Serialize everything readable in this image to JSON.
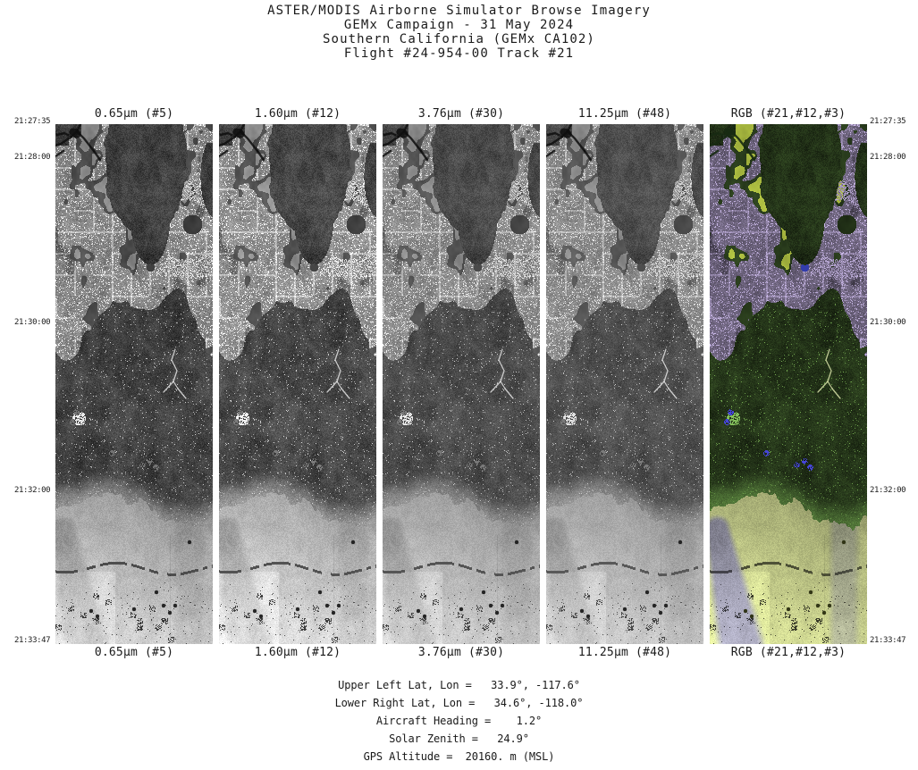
{
  "page": {
    "background": "#ffffff",
    "text_color": "#1a1a1a"
  },
  "title": {
    "line1": "ASTER/MODIS Airborne Simulator Browse Imagery",
    "line2": "GEMx Campaign - 31 May 2024",
    "line3": "Southern California (GEMx CA102)",
    "line4": "Flight #24-954-00 Track #21"
  },
  "strips": [
    {
      "label": "0.65µm (#5)",
      "band": "b05",
      "type": "grayscale"
    },
    {
      "label": "1.60µm (#12)",
      "band": "b12",
      "type": "grayscale"
    },
    {
      "label": "3.76µm (#30)",
      "band": "b30",
      "type": "grayscale"
    },
    {
      "label": "11.25µm (#48)",
      "band": "b48",
      "type": "grayscale"
    },
    {
      "label": "RGB (#21,#12,#3)",
      "band": "rgb",
      "type": "color"
    }
  ],
  "time_labels": [
    "21:27:35",
    "21:28:00",
    "21:30:00",
    "21:32:00",
    "21:33:47"
  ],
  "footer": {
    "lines": [
      "Upper Left Lat, Lon =   33.9°, -117.6°",
      "Lower Right Lat, Lon =   34.6°, -118.0°",
      "Aircraft Heading =    1.2°",
      "Solar Zenith =   24.9°",
      "GPS Altitude =  20160. m (MSL)"
    ]
  },
  "imagery_colors": {
    "urban_lavender": "#9a8fc0",
    "vegetation_bright": "#a9bc3f",
    "mountain_dark_green": "#2a3f1c",
    "valley_pale_green": "#d0d897",
    "wash_lavender": "#a8a4cf",
    "lake_blue": "#323ca8"
  }
}
